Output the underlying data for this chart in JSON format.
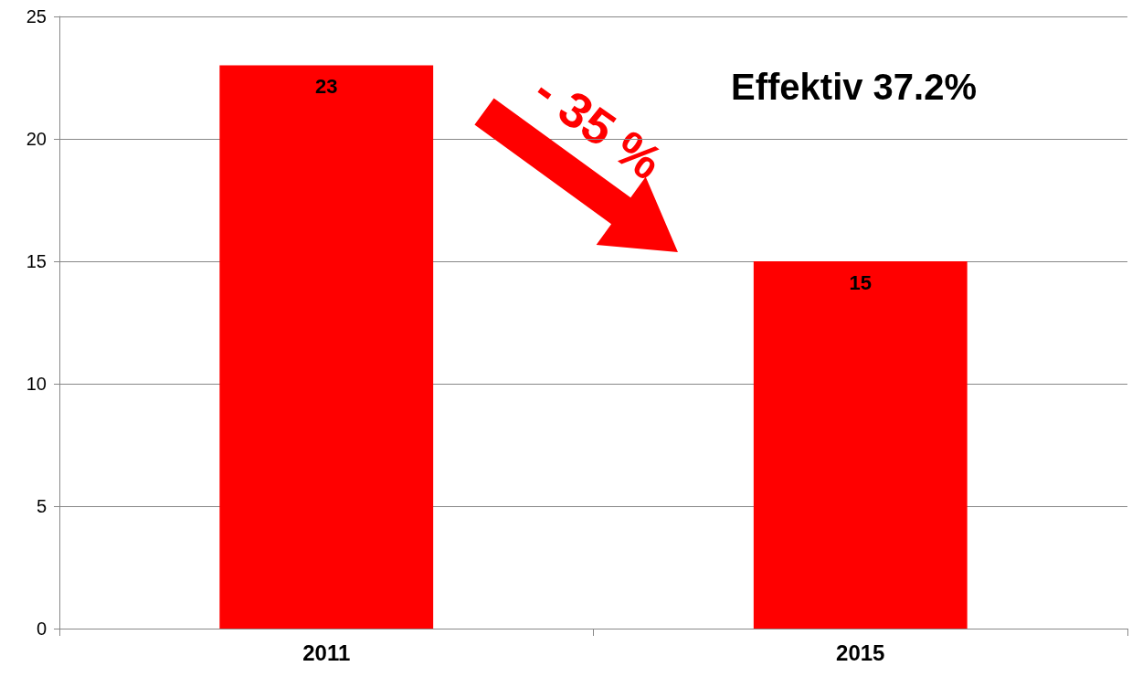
{
  "chart_data": {
    "type": "bar",
    "categories": [
      "2011",
      "2015"
    ],
    "values": [
      23,
      15
    ],
    "color": "#ff0000",
    "ylim": [
      0,
      25
    ],
    "yticks": [
      0,
      5,
      10,
      15,
      20,
      25
    ],
    "grid": "y",
    "data_labels": true,
    "annotations": [
      "- 35 %",
      "Effektiv 37.2%"
    ]
  }
}
